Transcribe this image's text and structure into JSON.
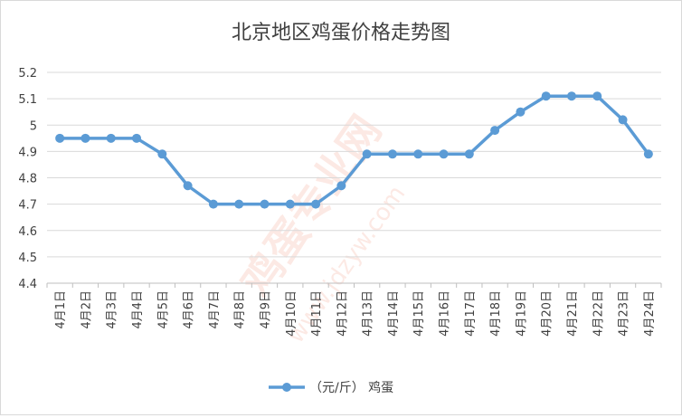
{
  "chart_data": {
    "type": "line",
    "title": "北京地区鸡蛋价格走势图",
    "xlabel": "",
    "ylabel": "",
    "categories": [
      "4月1日",
      "4月2日",
      "4月3日",
      "4月4日",
      "4月5日",
      "4月6日",
      "4月7日",
      "4月8日",
      "4月9日",
      "4月10日",
      "4月11日",
      "4月12日",
      "4月13日",
      "4月14日",
      "4月15日",
      "4月16日",
      "4月17日",
      "4月18日",
      "4月19日",
      "4月20日",
      "4月21日",
      "4月22日",
      "4月23日",
      "4月24日"
    ],
    "series": [
      {
        "name": "（元/斤）  鸡蛋",
        "color": "#5b9bd5",
        "values": [
          4.95,
          4.95,
          4.95,
          4.95,
          4.89,
          4.77,
          4.7,
          4.7,
          4.7,
          4.7,
          4.7,
          4.77,
          4.89,
          4.89,
          4.89,
          4.89,
          4.89,
          4.98,
          5.05,
          5.11,
          5.11,
          5.11,
          5.02,
          4.89
        ]
      }
    ],
    "ylim": [
      4.4,
      5.2
    ],
    "yticks": [
      "4.4",
      "4.5",
      "4.6",
      "4.7",
      "4.8",
      "4.9",
      "5",
      "5.1",
      "5.2"
    ],
    "grid": true,
    "legend": "bottom"
  },
  "watermark": {
    "main": "鸡蛋专业网",
    "sub": "www.jdzyw.com"
  }
}
